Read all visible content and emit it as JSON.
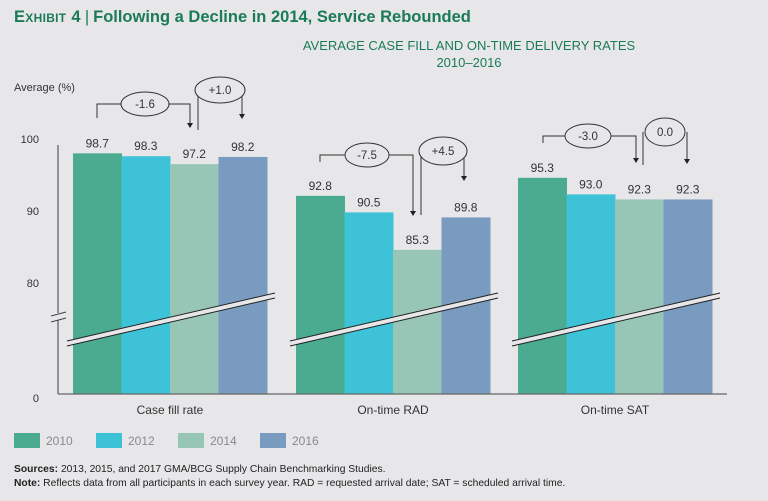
{
  "header": {
    "exhibit_label": "Exhibit 4",
    "separator": "|",
    "headline": "Following a Decline in 2014, Service Rebounded"
  },
  "chart_data": {
    "type": "bar",
    "title": "AVERAGE CASE FILL AND ON-TIME DELIVERY RATES",
    "subtitle": "2010–2016",
    "ylabel": "Average (%)",
    "xlabel": "",
    "ylim": [
      0,
      100
    ],
    "axis_break": true,
    "y_ticks": [
      "100",
      "90",
      "80",
      "0"
    ],
    "y_tick_values": [
      100,
      90,
      80,
      0
    ],
    "grid": false,
    "legend_position": "bottom-left",
    "categories": [
      "Case fill rate",
      "On-time RAD",
      "On-time SAT"
    ],
    "series": [
      {
        "name": "2010",
        "color": "#4aab91",
        "values": [
          98.7,
          92.8,
          95.3
        ]
      },
      {
        "name": "2012",
        "color": "#3dc2d8",
        "values": [
          98.3,
          90.5,
          93.0
        ]
      },
      {
        "name": "2014",
        "color": "#97c6b7",
        "values": [
          97.2,
          85.3,
          92.3
        ]
      },
      {
        "name": "2016",
        "color": "#799bc0",
        "values": [
          98.2,
          89.8,
          92.3
        ]
      }
    ],
    "data_labels": [
      [
        "98.7",
        "98.3",
        "97.2",
        "98.2"
      ],
      [
        "92.8",
        "90.5",
        "85.3",
        "89.8"
      ],
      [
        "95.3",
        "93.0",
        "92.3",
        "92.3"
      ]
    ],
    "annotations": [
      {
        "category": "Case fill rate",
        "from": "2010",
        "to": "2014",
        "label": "-1.6"
      },
      {
        "category": "Case fill rate",
        "from": "2014",
        "to": "2016",
        "label": "+1.0"
      },
      {
        "category": "On-time RAD",
        "from": "2010",
        "to": "2014",
        "label": "-7.5"
      },
      {
        "category": "On-time RAD",
        "from": "2014",
        "to": "2016",
        "label": "+4.5"
      },
      {
        "category": "On-time SAT",
        "from": "2010",
        "to": "2014",
        "label": "-3.0"
      },
      {
        "category": "On-time SAT",
        "from": "2014",
        "to": "2016",
        "label": "0.0"
      }
    ]
  },
  "footnotes": {
    "sources_label": "Sources:",
    "sources_text": " 2013, 2015, and 2017 GMA/BCG Supply Chain Benchmarking Studies.",
    "note_label": "Note:",
    "note_text": " Reflects data from all participants in each survey year. RAD = requested arrival date; SAT = scheduled arrival time."
  }
}
